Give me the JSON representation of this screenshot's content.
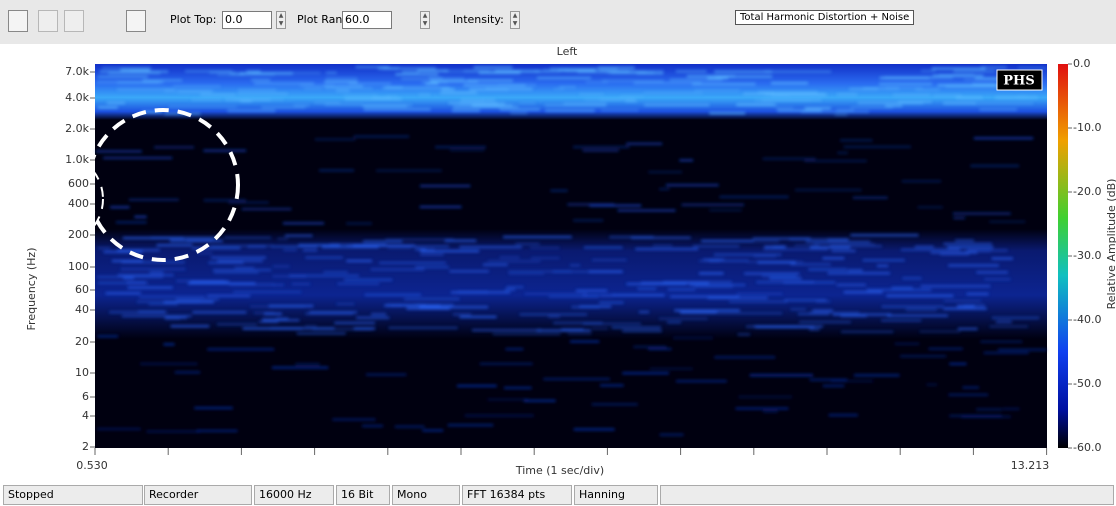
{
  "toolbar": {
    "plot_top_label": "Plot Top:",
    "plot_top_value": "0.0",
    "plot_range_label": "Plot Range:",
    "plot_range_value": "60.0",
    "intensity_label": "Intensity:",
    "measurement": "Total Harmonic Distortion + Noise"
  },
  "plot": {
    "channel": "Left",
    "y_axis_label": "Frequency (Hz)",
    "y_ticks": [
      "7.0k",
      "4.0k",
      "2.0k",
      "1.0k",
      "600",
      "400",
      "200",
      "100",
      "60",
      "40",
      "20",
      "10",
      "6",
      "4",
      "2"
    ],
    "x_start": "0.530",
    "x_end": "13.213",
    "x_axis_label": "Time (1 sec/div)",
    "watermark": "PHS",
    "colorbar_label": "Relative Amplitude (dB)",
    "colorbar_ticks": [
      "0.0",
      "-10.0",
      "-20.0",
      "-30.0",
      "-40.0",
      "-50.0",
      "-60.0"
    ]
  },
  "status_bar": [
    "Stopped",
    "Recorder",
    "16000 Hz",
    "16 Bit",
    "Mono",
    "FFT 16384 pts",
    "Hanning"
  ]
}
